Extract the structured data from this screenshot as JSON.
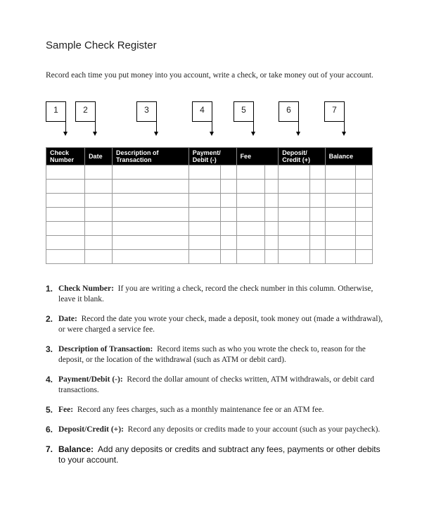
{
  "title": "Sample Check Register",
  "intro": "Record each time you put money into you account, write a check, or take money out of your account.",
  "boxes": [
    "1",
    "2",
    "3",
    "4",
    "5",
    "6",
    "7"
  ],
  "table": {
    "headers": [
      "Check Number",
      "Date",
      "Description of Transaction",
      "Payment/ Debit (-)",
      "Fee",
      "Deposit/ Credit (+)",
      "Balance"
    ],
    "row_count": 7
  },
  "items": [
    {
      "num": "1.",
      "term": "Check Number:",
      "text": "If you are writing a check, record the check number in this column. Otherwise, leave it blank."
    },
    {
      "num": "2.",
      "term": "Date:",
      "text": "Record the date you wrote your check, made a deposit, took money out (made a withdrawal), or were charged a service fee."
    },
    {
      "num": "3.",
      "term": "Description of Transaction:",
      "text": "Record items such as who you wrote the check to, reason for the deposit, or the location of the withdrawal (such as ATM or debit card)."
    },
    {
      "num": "4.",
      "term": "Payment/Debit (-):",
      "text": "Record the dollar amount of checks written, ATM withdrawals, or debit card transactions."
    },
    {
      "num": "5.",
      "term": "Fee:",
      "text": "Record any fees charges, such as a monthly maintenance fee or an ATM fee."
    },
    {
      "num": "6.",
      "term": "Deposit/Credit (+):",
      "text": "Record any deposits or credits made to your account (such as your paycheck)."
    },
    {
      "num": "7.",
      "term": "Balance:",
      "text": "Add any deposits or credits and subtract any fees, payments or other debits to your account."
    }
  ]
}
